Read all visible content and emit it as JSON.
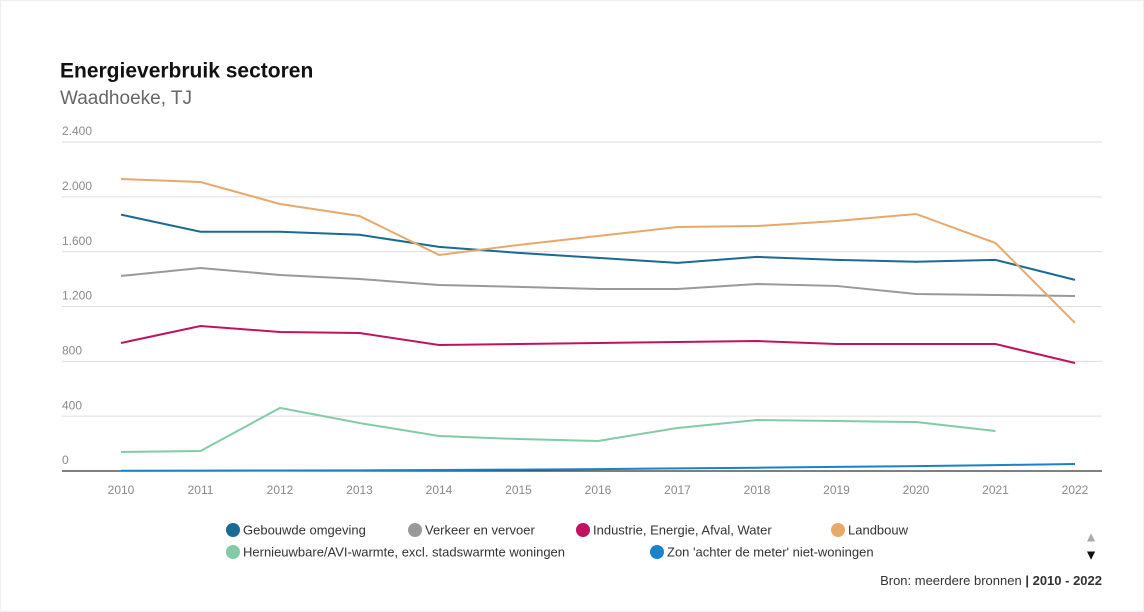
{
  "chart_data": {
    "type": "line",
    "title": "Energieverbruik sectoren",
    "subtitle": "Waadhoeke, TJ",
    "categories": [
      "2010",
      "2011",
      "2012",
      "2013",
      "2014",
      "2015",
      "2016",
      "2017",
      "2018",
      "2019",
      "2020",
      "2021",
      "2022"
    ],
    "ylim": [
      0,
      2400
    ],
    "yticks": [
      0,
      400,
      800,
      {
        "value": 1200,
        "label": "1.200"
      },
      {
        "value": 1600,
        "label": "1.600"
      },
      {
        "value": 2000,
        "label": "2.000"
      },
      {
        "value": 2400,
        "label": "2.400"
      }
    ],
    "grid": true,
    "series": [
      {
        "name": "Gebouwde omgeving",
        "color": "#1a6a96",
        "values": [
          1870,
          1745,
          1745,
          1723,
          1635,
          1591,
          1555,
          1518,
          1562,
          1540,
          1526,
          1540,
          1394
        ]
      },
      {
        "name": "Verkeer en vervoer",
        "color": "#999999",
        "values": [
          1423,
          1481,
          1430,
          1401,
          1357,
          1343,
          1328,
          1328,
          1364,
          1350,
          1291,
          1284,
          1277
        ]
      },
      {
        "name": "Industrie, Energie, Afval, Water",
        "color": "#c0135f",
        "values": [
          934,
          1058,
          1014,
          1007,
          919,
          926,
          934,
          941,
          948,
          926,
          926,
          926,
          788
        ]
      },
      {
        "name": "Landbouw",
        "color": "#e8a86a",
        "values": [
          2130,
          2108,
          1948,
          1860,
          1576,
          1649,
          1714,
          1780,
          1787,
          1824,
          1875,
          1663,
          1080
        ]
      },
      {
        "name": "Hernieuwbare/AVI-warmte, excl. stadswarmte woningen",
        "color": "#82cba5",
        "values": [
          139,
          146,
          460,
          350,
          255,
          233,
          219,
          314,
          372,
          365,
          357,
          292,
          null
        ]
      },
      {
        "name": "Zon 'achter de meter' niet-woningen",
        "color": "#1a82c8",
        "values": [
          2,
          3,
          4,
          5,
          7,
          10,
          14,
          19,
          24,
          30,
          36,
          43,
          51
        ]
      }
    ],
    "source": "Bron: meerdere bronnen",
    "source_range": "| 2010 - 2022"
  }
}
